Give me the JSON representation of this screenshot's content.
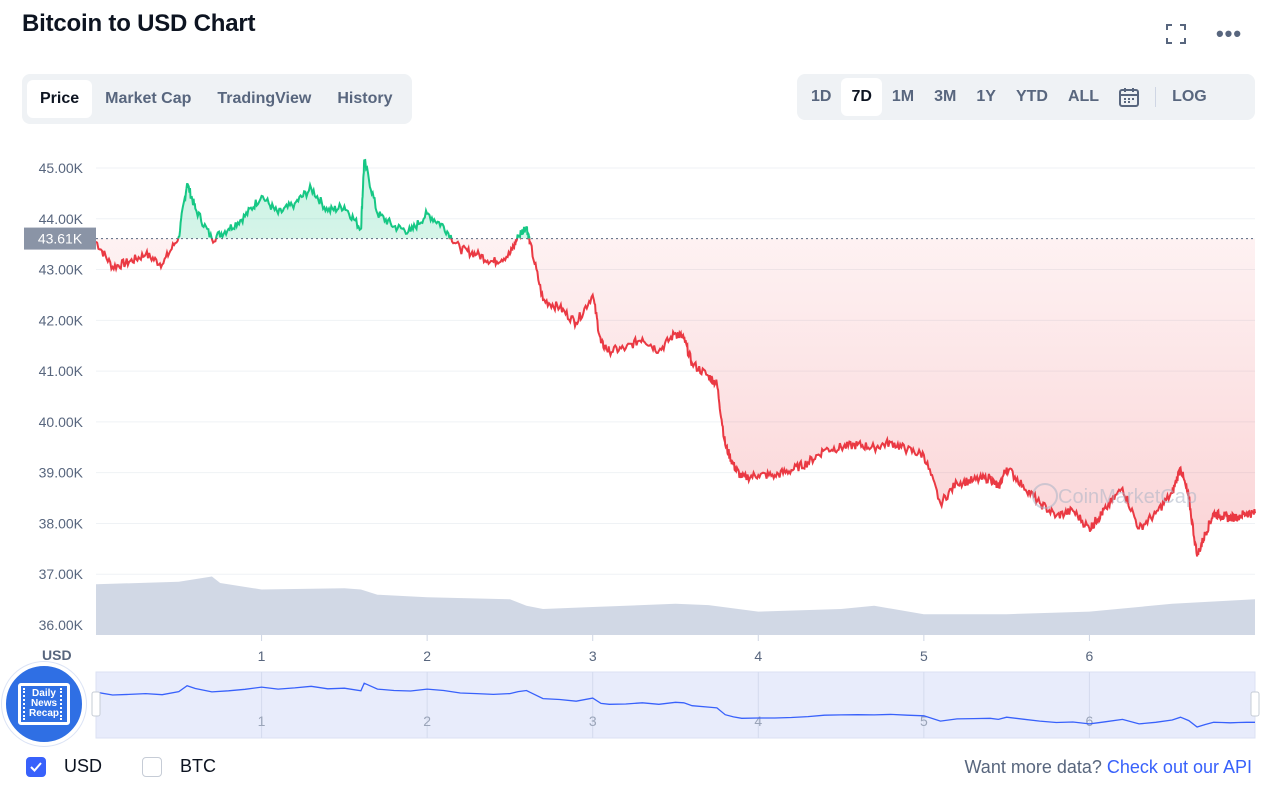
{
  "title": "Bitcoin to USD Chart",
  "icons": {
    "expand": "expand-icon",
    "more": "more-options-icon",
    "calendar": "calendar-icon"
  },
  "tabs": [
    {
      "label": "Price",
      "active": true
    },
    {
      "label": "Market Cap",
      "active": false
    },
    {
      "label": "TradingView",
      "active": false
    },
    {
      "label": "History",
      "active": false
    }
  ],
  "ranges": [
    {
      "label": "1D",
      "active": false
    },
    {
      "label": "7D",
      "active": true
    },
    {
      "label": "1M",
      "active": false
    },
    {
      "label": "3M",
      "active": false
    },
    {
      "label": "1Y",
      "active": false
    },
    {
      "label": "YTD",
      "active": false
    },
    {
      "label": "ALL",
      "active": false
    }
  ],
  "log_label": "LOG",
  "watermark": "CoinMarketCap",
  "news_badge": {
    "line1": "Daily",
    "line2": "News",
    "line3": "Recap"
  },
  "currency_options": [
    {
      "label": "USD",
      "checked": true
    },
    {
      "label": "BTC",
      "checked": false
    }
  ],
  "api": {
    "prefix": "Want more data?",
    "link": "Check out our API"
  },
  "colors": {
    "up": "#16c784",
    "down": "#ea3943",
    "accent": "#3861fb",
    "volume": "#cfd6e4",
    "navigator": "#e8ecfb"
  },
  "chart_data": {
    "type": "line",
    "currency_label": "USD",
    "reference_label": "43.61K",
    "reference_value": 43610,
    "ylim": [
      36000,
      45000
    ],
    "yticks": [
      {
        "value": 45000,
        "label": "45.00K"
      },
      {
        "value": 44000,
        "label": "44.00K"
      },
      {
        "value": 43000,
        "label": "43.00K"
      },
      {
        "value": 42000,
        "label": "42.00K"
      },
      {
        "value": 41000,
        "label": "41.00K"
      },
      {
        "value": 40000,
        "label": "40.00K"
      },
      {
        "value": 39000,
        "label": "39.00K"
      },
      {
        "value": 38000,
        "label": "38.00K"
      },
      {
        "value": 37000,
        "label": "37.00K"
      },
      {
        "value": 36000,
        "label": "36.00K"
      }
    ],
    "xlim": [
      0.0,
      7.0
    ],
    "xticks": [
      "1",
      "2",
      "3",
      "4",
      "5",
      "6"
    ],
    "x": [
      0.0,
      0.1,
      0.2,
      0.3,
      0.4,
      0.5,
      0.55,
      0.6,
      0.7,
      0.8,
      0.9,
      1.0,
      1.1,
      1.2,
      1.3,
      1.4,
      1.5,
      1.6,
      1.62,
      1.7,
      1.8,
      1.9,
      2.0,
      2.1,
      2.2,
      2.3,
      2.4,
      2.5,
      2.55,
      2.6,
      2.62,
      2.7,
      2.8,
      2.9,
      3.0,
      3.05,
      3.1,
      3.2,
      3.3,
      3.4,
      3.5,
      3.55,
      3.6,
      3.7,
      3.75,
      3.8,
      3.85,
      3.9,
      4.0,
      4.1,
      4.2,
      4.3,
      4.4,
      4.5,
      4.6,
      4.7,
      4.8,
      4.9,
      5.0,
      5.1,
      5.2,
      5.3,
      5.4,
      5.45,
      5.5,
      5.6,
      5.7,
      5.8,
      5.9,
      6.0,
      6.05,
      6.1,
      6.2,
      6.3,
      6.4,
      6.5,
      6.55,
      6.6,
      6.65,
      6.7,
      6.75,
      6.8,
      6.85,
      6.9,
      6.95,
      7.0
    ],
    "price": [
      43550,
      43050,
      43150,
      43300,
      43100,
      43650,
      44700,
      44200,
      43600,
      43800,
      44050,
      44450,
      44100,
      44300,
      44600,
      44150,
      44250,
      43800,
      45150,
      44100,
      43850,
      43750,
      44100,
      43850,
      43400,
      43300,
      43150,
      43300,
      43650,
      43850,
      43550,
      42400,
      42250,
      41950,
      42500,
      41550,
      41400,
      41450,
      41650,
      41400,
      41750,
      41650,
      41150,
      40900,
      40750,
      39550,
      39150,
      38900,
      38950,
      38950,
      39050,
      39200,
      39450,
      39500,
      39550,
      39500,
      39600,
      39450,
      39350,
      38400,
      38800,
      38850,
      38900,
      38700,
      39100,
      38750,
      38400,
      38150,
      38250,
      37900,
      38100,
      38300,
      38700,
      37900,
      38200,
      38600,
      39100,
      38500,
      37350,
      37800,
      38200,
      38150,
      38100,
      38150,
      38200,
      38200
    ],
    "volume_series": {
      "x": [
        0.0,
        0.5,
        0.7,
        0.75,
        1.0,
        1.5,
        1.6,
        1.7,
        2.0,
        2.5,
        2.6,
        2.7,
        3.0,
        3.5,
        3.7,
        4.0,
        4.5,
        4.7,
        5.0,
        5.5,
        6.0,
        6.5,
        7.0
      ],
      "values": [
        0.78,
        0.82,
        0.9,
        0.8,
        0.7,
        0.72,
        0.7,
        0.62,
        0.58,
        0.55,
        0.45,
        0.4,
        0.43,
        0.48,
        0.46,
        0.36,
        0.4,
        0.45,
        0.32,
        0.32,
        0.36,
        0.48,
        0.55
      ]
    },
    "navigator": {
      "labels": [
        "1",
        "2",
        "3",
        "4",
        "5",
        "6"
      ]
    }
  }
}
